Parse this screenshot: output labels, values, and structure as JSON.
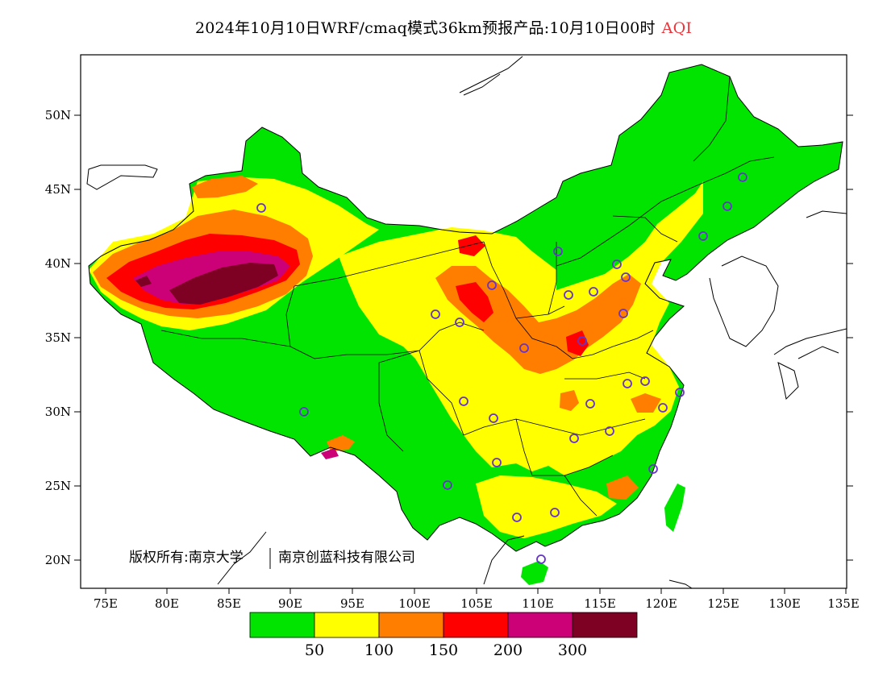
{
  "title": {
    "main": "2024年10月10日WRF/cmaq模式36km预报产品:10月10日00时",
    "variable": "AQI",
    "variable_color": "#e8383d"
  },
  "axes": {
    "lat_labels": [
      "50N",
      "45N",
      "40N",
      "35N",
      "30N",
      "25N",
      "20N"
    ],
    "lon_labels": [
      "75E",
      "80E",
      "85E",
      "90E",
      "95E",
      "100E",
      "105E",
      "110E",
      "115E",
      "120E",
      "125E",
      "130E",
      "135E"
    ]
  },
  "copyright": {
    "owner_prefix": "版权所有:",
    "org1": "南京大学",
    "org2": "南京创蓝科技有限公司"
  },
  "colorbar": {
    "colors": [
      "#00e400",
      "#ffff00",
      "#ff7e00",
      "#ff0000",
      "#cc0077",
      "#7e0023"
    ],
    "labels": [
      "50",
      "100",
      "150",
      "200",
      "300"
    ]
  },
  "colors": {
    "good": "#00e400",
    "moderate": "#ffff00",
    "sensitive": "#ff7e00",
    "unhealthy": "#ff0000",
    "very_unhealthy": "#cc0077",
    "hazardous": "#7e0023",
    "station_marker": "#6633cc"
  }
}
